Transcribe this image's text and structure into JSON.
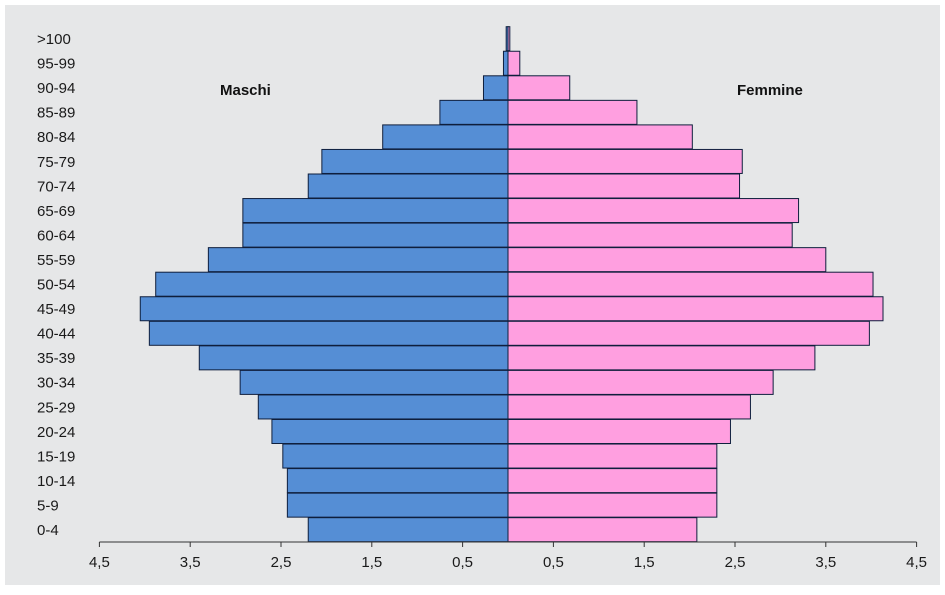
{
  "chart_data": {
    "type": "bar",
    "orientation": "horizontal",
    "subtype": "population-pyramid",
    "title": "",
    "xlabel": "",
    "ylabel": "",
    "categories": [
      "0-4",
      "5-9",
      "10-14",
      "15-19",
      "20-24",
      "25-29",
      "30-34",
      "35-39",
      "40-44",
      "45-49",
      "50-54",
      "55-59",
      "60-64",
      "65-69",
      "70-74",
      "75-79",
      "80-84",
      "85-89",
      "90-94",
      "95-99",
      ">100"
    ],
    "series": [
      {
        "name": "Maschi",
        "side": "left",
        "color": "#558ed5",
        "values": [
          2.2,
          2.43,
          2.43,
          2.48,
          2.6,
          2.75,
          2.95,
          3.4,
          3.95,
          4.05,
          3.88,
          3.3,
          2.92,
          2.92,
          2.2,
          2.05,
          1.38,
          0.75,
          0.27,
          0.05,
          0.02
        ]
      },
      {
        "name": "Femmine",
        "side": "right",
        "color": "#ff9fe0",
        "values": [
          2.08,
          2.3,
          2.3,
          2.3,
          2.45,
          2.67,
          2.92,
          3.38,
          3.98,
          4.13,
          4.02,
          3.5,
          3.13,
          3.2,
          2.55,
          2.58,
          2.03,
          1.42,
          0.68,
          0.13,
          0.02
        ]
      }
    ],
    "xaxis": {
      "range": [
        -4.5,
        4.5
      ],
      "ticks": [
        -4.5,
        -3.5,
        -2.5,
        -1.5,
        -0.5,
        0.5,
        1.5,
        2.5,
        3.5,
        4.5
      ],
      "tick_labels": [
        "4,5",
        "3,5",
        "2,5",
        "1,5",
        "0,5",
        "0,5",
        "1,5",
        "2,5",
        "3,5",
        "4,5"
      ]
    },
    "grid": false,
    "legend": "none",
    "background": "#e6e7e8",
    "bar_outline": "#0f1f3d"
  }
}
